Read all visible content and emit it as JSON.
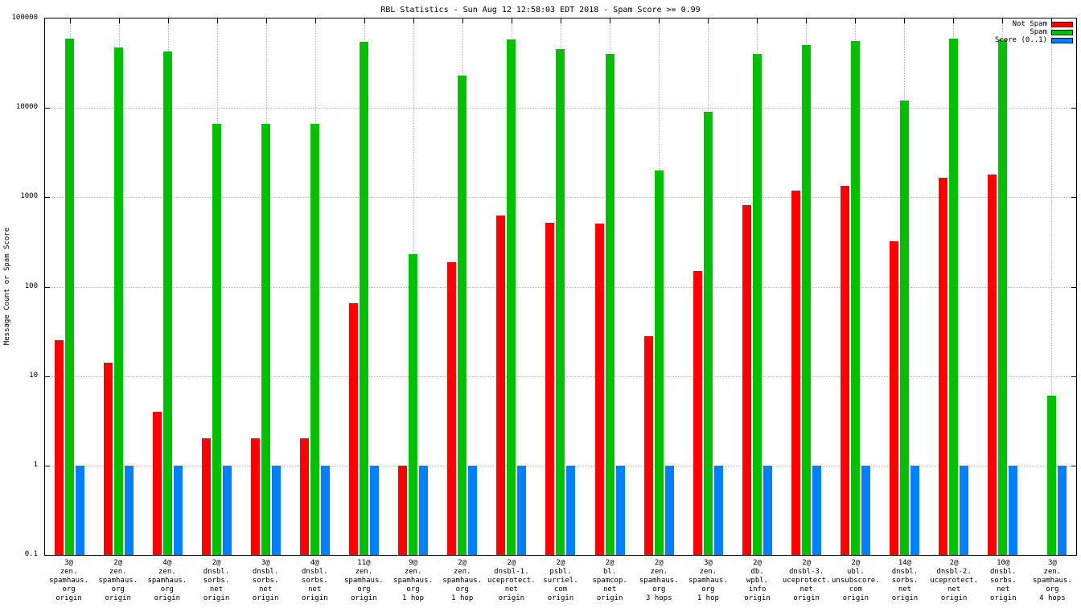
{
  "window": {
    "background": "#ffffff"
  },
  "chart_data": {
    "type": "bar",
    "title": "RBL Statistics - Sun Aug 12 12:58:03 EDT 2018 - Spam Score >= 0.99",
    "ylabel": "Message Count or Spam Score",
    "xlabel": "",
    "yscale": "log",
    "ylim": [
      0.1,
      100000
    ],
    "yticks": [
      0.1,
      1,
      10,
      100,
      1000,
      10000,
      100000
    ],
    "grid": true,
    "grid_color": "#b8b8b8",
    "legend_position": "top-right",
    "categories": [
      [
        "3@",
        "zen.",
        "spamhaus.",
        "org",
        "origin"
      ],
      [
        "2@",
        "zen.",
        "spamhaus.",
        "org",
        "origin"
      ],
      [
        "4@",
        "zen.",
        "spamhaus.",
        "org",
        "origin"
      ],
      [
        "2@",
        "dnsbl.",
        "sorbs.",
        "net",
        "origin"
      ],
      [
        "3@",
        "dnsbl.",
        "sorbs.",
        "net",
        "origin"
      ],
      [
        "4@",
        "dnsbl.",
        "sorbs.",
        "net",
        "origin"
      ],
      [
        "11@",
        "zen.",
        "spamhaus.",
        "org",
        "origin"
      ],
      [
        "9@",
        "zen.",
        "spamhaus.",
        "org",
        "1 hop"
      ],
      [
        "2@",
        "zen.",
        "spamhaus.",
        "org",
        "1 hop"
      ],
      [
        "2@",
        "dnsbl-1.",
        "uceprotect.",
        "net",
        "origin"
      ],
      [
        "2@",
        "psbl.",
        "surriel.",
        "com",
        "origin"
      ],
      [
        "2@",
        "bl.",
        "spamcop.",
        "net",
        "origin"
      ],
      [
        "2@",
        "zen.",
        "spamhaus.",
        "org",
        "3 hops"
      ],
      [
        "3@",
        "zen.",
        "spamhaus.",
        "org",
        "1 hop"
      ],
      [
        "2@",
        "db.",
        "wpbl.",
        "info",
        "origin"
      ],
      [
        "2@",
        "dnsbl-3.",
        "uceprotect.",
        "net",
        "origin"
      ],
      [
        "2@",
        "ubl.",
        "unsubscore.",
        "com",
        "origin"
      ],
      [
        "14@",
        "dnsbl.",
        "sorbs.",
        "net",
        "origin"
      ],
      [
        "2@",
        "dnsbl-2.",
        "uceprotect.",
        "net",
        "origin"
      ],
      [
        "10@",
        "dnsbl.",
        "sorbs.",
        "net",
        "origin"
      ],
      [
        "3@",
        "zen.",
        "spamhaus.",
        "org",
        "4 hops"
      ]
    ],
    "series": [
      {
        "key": "not-spam",
        "name": "Not Spam",
        "color": "#ff0000",
        "values": [
          25,
          14,
          4,
          2,
          2,
          2,
          65,
          1,
          190,
          620,
          520,
          510,
          28,
          150,
          820,
          1200,
          1350,
          320,
          1650,
          1800,
          0
        ]
      },
      {
        "key": "spam",
        "name": "Spam",
        "color": "#00c000",
        "values": [
          60000,
          47000,
          43000,
          6600,
          6600,
          6600,
          55000,
          230,
          23000,
          58000,
          46000,
          40000,
          2000,
          9000,
          40000,
          51000,
          56000,
          12000,
          60000,
          58000,
          6
        ]
      },
      {
        "key": "score",
        "name": "Score (0..1)",
        "color": "#0080ff",
        "values": [
          1,
          1,
          1,
          1,
          1,
          1,
          1,
          1,
          1,
          1,
          1,
          1,
          1,
          1,
          1,
          1,
          1,
          1,
          1,
          1,
          1
        ]
      }
    ]
  }
}
